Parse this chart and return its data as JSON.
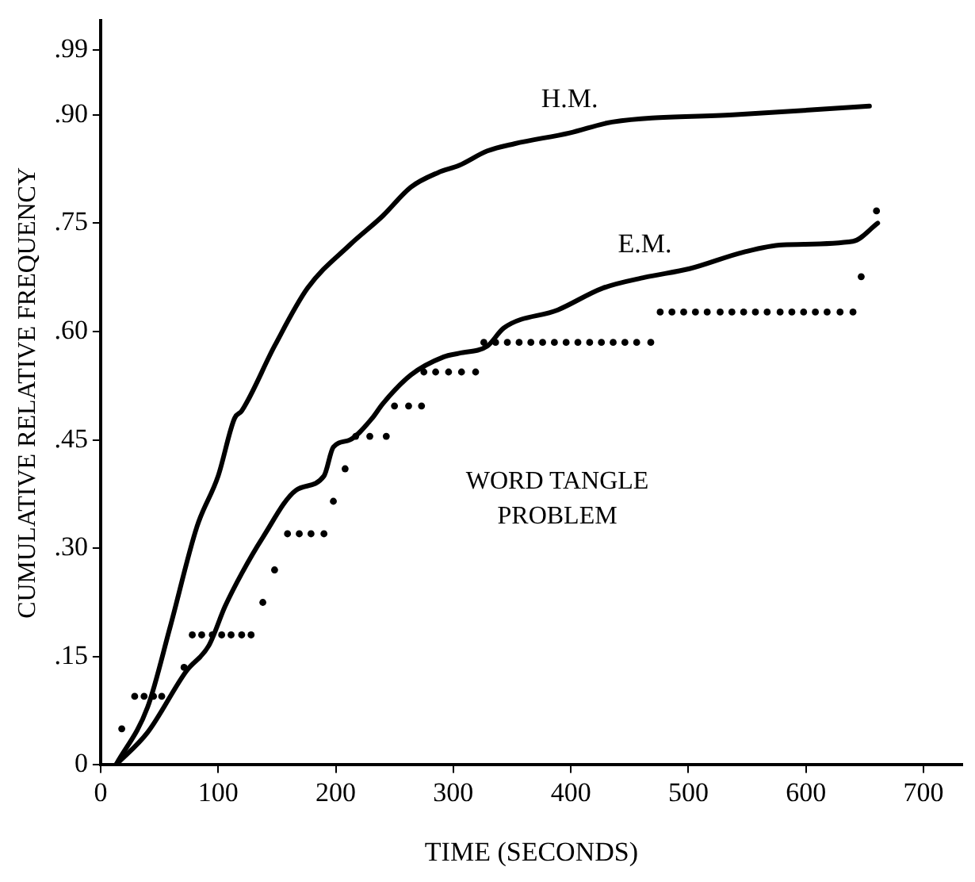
{
  "chart_data": {
    "type": "line",
    "xlabel": "TIME (SECONDS)",
    "ylabel": "CUMULATIVE RELATIVE FREQUENCY",
    "xlim": [
      0,
      733
    ],
    "ylim": [
      0,
      1.03
    ],
    "xticks": [
      0,
      100,
      200,
      300,
      400,
      500,
      600,
      700
    ],
    "yticks": [
      0,
      {
        "value": 0.15,
        "label": ".15"
      },
      {
        "value": 0.3,
        "label": ".30"
      },
      {
        "value": 0.45,
        "label": ".45"
      },
      {
        "value": 0.6,
        "label": ".60"
      },
      {
        "value": 0.75,
        "label": ".75"
      },
      {
        "value": 0.9,
        "label": ".90"
      },
      {
        "value": 0.99,
        "label": ".99"
      }
    ],
    "grid": false,
    "legend": false,
    "line_style": "solid",
    "annotations": [
      "WORD TANGLE\nPROBLEM"
    ],
    "series": [
      {
        "name": "H.M.",
        "marker": "none",
        "color": "#000000",
        "x": [
          13,
          40,
          59,
          82,
          100,
          114,
          120,
          148,
          176,
          212,
          240,
          264,
          287,
          305,
          329,
          352,
          399,
          435,
          538,
          654
        ],
        "values": [
          0,
          0.08,
          0.19,
          0.33,
          0.4,
          0.48,
          0.49,
          0.58,
          0.66,
          0.72,
          0.76,
          0.8,
          0.82,
          0.83,
          0.85,
          0.86,
          0.875,
          0.89,
          0.9,
          0.912
        ]
      },
      {
        "name": "E.M.",
        "marker": "none",
        "color": "#000000",
        "x": [
          13,
          40,
          73,
          92,
          106,
          120,
          138,
          166,
          190,
          198,
          212,
          231,
          240,
          264,
          292,
          305,
          329,
          343,
          389,
          427,
          463,
          501,
          547,
          580,
          640,
          661
        ],
        "values": [
          0,
          0.045,
          0.13,
          0.165,
          0.22,
          0.265,
          0.315,
          0.38,
          0.4,
          0.44,
          0.45,
          0.48,
          0.5,
          0.54,
          0.565,
          0.57,
          0.58,
          0.605,
          0.63,
          0.66,
          0.675,
          0.687,
          0.71,
          0.72,
          0.725,
          0.75
        ]
      },
      {
        "type": "scatter",
        "marker": "circle",
        "color": "#000000",
        "x": [
          18,
          29,
          37,
          45,
          52,
          71,
          78,
          86,
          95,
          103,
          111,
          120,
          128,
          138,
          148,
          159,
          169,
          179,
          190,
          198,
          208,
          217,
          229,
          243,
          250,
          262,
          273,
          275,
          285,
          296,
          307,
          319,
          326,
          336,
          346,
          356,
          366,
          376,
          386,
          396,
          406,
          416,
          426,
          436,
          446,
          456,
          468,
          476,
          486,
          496,
          506,
          516,
          527,
          537,
          547,
          557,
          567,
          578,
          588,
          598,
          608,
          618,
          629,
          640,
          647,
          660
        ],
        "values": [
          0.05,
          0.095,
          0.095,
          0.095,
          0.095,
          0.135,
          0.18,
          0.18,
          0.18,
          0.18,
          0.18,
          0.18,
          0.18,
          0.225,
          0.27,
          0.32,
          0.32,
          0.32,
          0.32,
          0.365,
          0.41,
          0.455,
          0.455,
          0.455,
          0.497,
          0.497,
          0.497,
          0.544,
          0.544,
          0.544,
          0.544,
          0.544,
          0.585,
          0.585,
          0.585,
          0.585,
          0.585,
          0.585,
          0.585,
          0.585,
          0.585,
          0.585,
          0.585,
          0.585,
          0.585,
          0.585,
          0.585,
          0.627,
          0.627,
          0.627,
          0.627,
          0.627,
          0.627,
          0.627,
          0.627,
          0.627,
          0.627,
          0.627,
          0.627,
          0.627,
          0.627,
          0.627,
          0.627,
          0.627,
          0.676,
          0.767
        ]
      }
    ]
  }
}
